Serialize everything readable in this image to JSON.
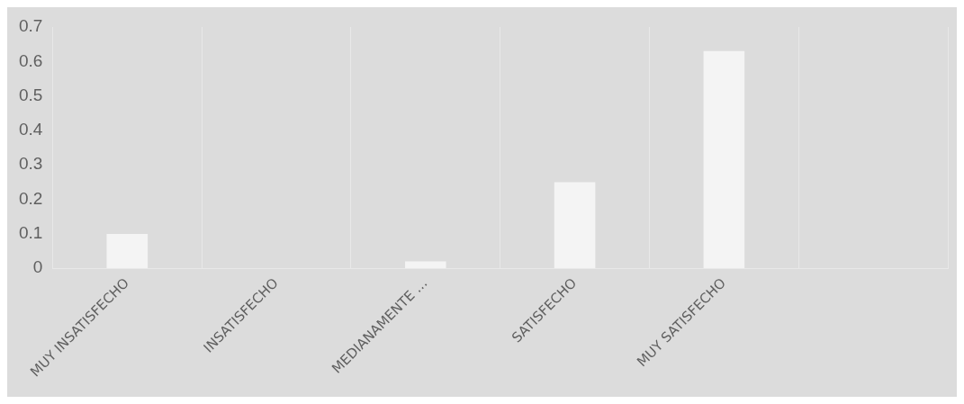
{
  "chart_data": {
    "type": "bar",
    "categories": [
      "MUY INSATISFECHO",
      "INSATISFECHO",
      "MEDIANAMENTE …",
      "SATISFECHO",
      "MUY SATISFECHO",
      null
    ],
    "values": [
      0.1,
      0,
      0.02,
      0.25,
      0.63,
      null
    ],
    "color": "#f4f4f4",
    "ylim": [
      0,
      0.7
    ],
    "yticks": [
      0,
      0.1,
      0.2,
      0.3,
      0.4,
      0.5,
      0.6,
      0.7
    ],
    "grid": "x",
    "legend": false
  }
}
